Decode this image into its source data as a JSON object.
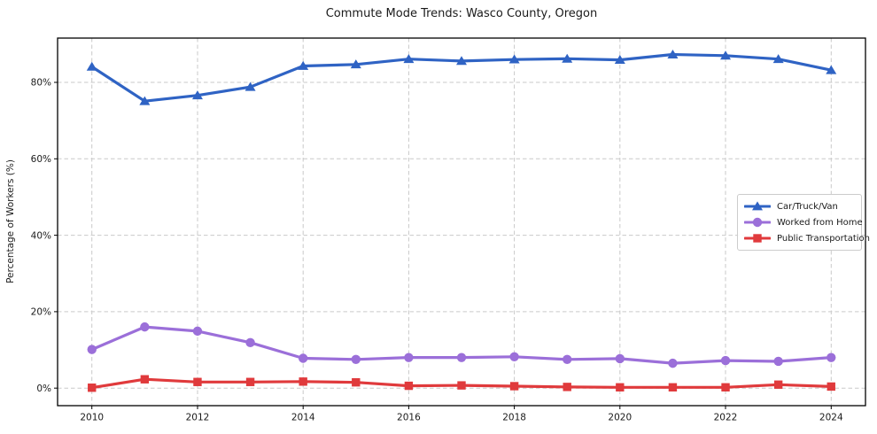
{
  "chart_data": {
    "type": "line",
    "title": "Commute Mode Trends: Wasco County, Oregon",
    "xlabel": "",
    "ylabel": "Percentage of Workers (%)",
    "x": [
      2010,
      2011,
      2012,
      2013,
      2014,
      2015,
      2016,
      2017,
      2018,
      2019,
      2020,
      2021,
      2022,
      2023,
      2024
    ],
    "x_ticks": [
      2010,
      2012,
      2014,
      2016,
      2018,
      2020,
      2022,
      2024
    ],
    "x_tick_labels": [
      "2010",
      "2012",
      "2014",
      "2016",
      "2018",
      "2020",
      "2022",
      "2024"
    ],
    "y_ticks": [
      0,
      20,
      40,
      60,
      80
    ],
    "y_tick_labels": [
      "0%",
      "20%",
      "40%",
      "60%",
      "80%"
    ],
    "xlim": [
      2009.35,
      2024.65
    ],
    "ylim": [
      -4.6,
      91.6
    ],
    "grid": true,
    "grid_color": "#c9c9c9",
    "legend_position": "center-right",
    "series": [
      {
        "name": "Car/Truck/Van",
        "color": "#2f63c4",
        "marker": "triangle",
        "values": [
          84.1,
          75.1,
          76.6,
          78.8,
          84.3,
          84.7,
          86.1,
          85.6,
          86.0,
          86.2,
          85.9,
          87.3,
          87.0,
          86.1,
          83.2
        ]
      },
      {
        "name": "Worked from Home",
        "color": "#9b6fd9",
        "marker": "circle",
        "values": [
          10.1,
          16.0,
          14.9,
          11.9,
          7.8,
          7.5,
          8.0,
          8.0,
          8.2,
          7.5,
          7.7,
          6.5,
          7.2,
          7.0,
          8.0
        ]
      },
      {
        "name": "Public Transportation",
        "color": "#e03a3c",
        "marker": "square",
        "values": [
          0.1,
          2.3,
          1.6,
          1.6,
          1.7,
          1.5,
          0.6,
          0.7,
          0.5,
          0.3,
          0.2,
          0.2,
          0.2,
          0.9,
          0.4
        ]
      }
    ]
  }
}
